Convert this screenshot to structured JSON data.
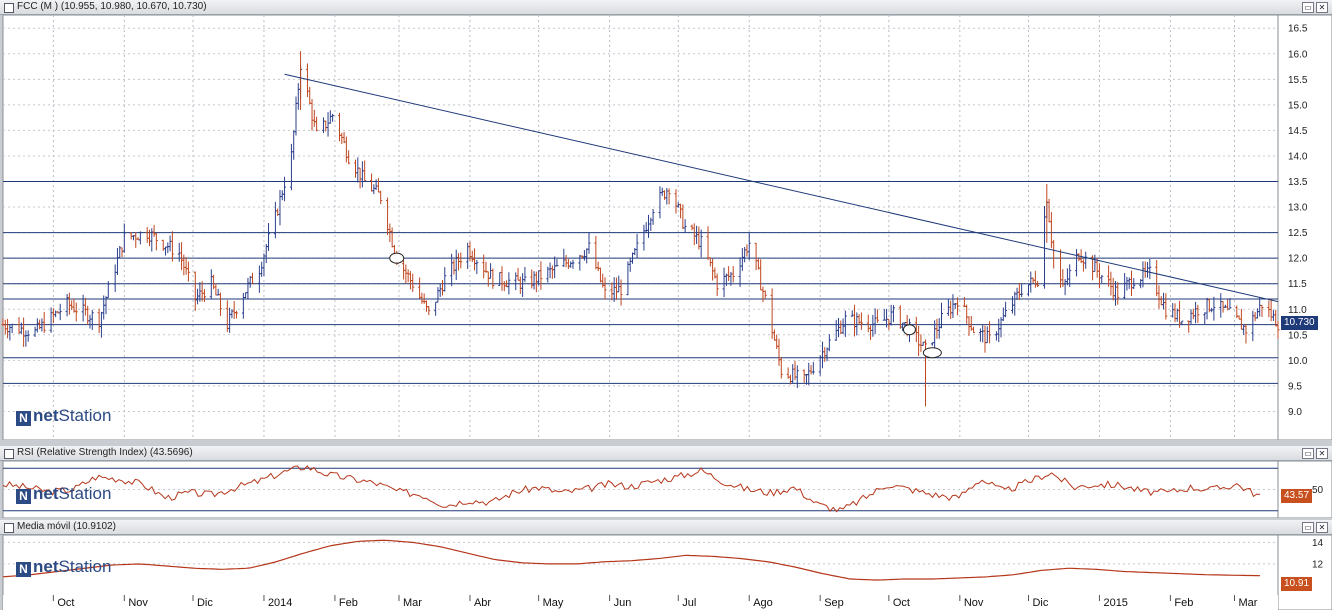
{
  "main_panel": {
    "title": "FCC (M ) (10.955, 10.980, 10.670, 10.730)",
    "last_value_badge": "10.730",
    "badge_color": "#1f3a78",
    "logo_net": "net",
    "logo_station": "Station"
  },
  "rsi_panel": {
    "title": "RSI (Relative Strength Index) (43.5696)",
    "last_value_badge": "43.57",
    "badge_color": "#c8501e",
    "tick_label": "50",
    "logo_net": "net",
    "logo_station": "Station"
  },
  "ma_panel": {
    "title": "Media móvil (10.9102)",
    "last_value_badge": "10.91",
    "badge_color": "#c8501e",
    "tick_labels": [
      "14",
      "12"
    ],
    "logo_net": "net",
    "logo_station": "Station"
  },
  "x_axis": {
    "months": [
      "Oct",
      "Nov",
      "Dic",
      "2014",
      "Feb",
      "Mar",
      "Abr",
      "May",
      "Jun",
      "Jul",
      "Ago",
      "Sep",
      "Oct",
      "Nov",
      "Dic",
      "2015",
      "Feb",
      "Mar"
    ]
  },
  "colors": {
    "up": "#2a3f8c",
    "down": "#c0461e",
    "line": "#1f3a78",
    "indicator": "#b5361a"
  },
  "chart_data": [
    {
      "type": "candlestick",
      "title": "FCC (M )",
      "last": {
        "open": 10.955,
        "high": 10.98,
        "low": 10.67,
        "close": 10.73
      },
      "ylim": [
        8.5,
        16.7
      ],
      "y_ticks": [
        "16.5",
        "16.0",
        "15.5",
        "15.0",
        "14.5",
        "14.0",
        "13.5",
        "13.0",
        "12.5",
        "12.0",
        "11.5",
        "11.0",
        "10.5",
        "10.0",
        "9.5",
        "9.0"
      ],
      "x_range": [
        "2013-09-09",
        "2015-03-20"
      ],
      "horizontal_levels": [
        13.5,
        12.5,
        12.0,
        11.5,
        11.2,
        10.7,
        10.05,
        9.55
      ],
      "trendline": {
        "from": {
          "date": "2014-01-10",
          "price": 15.6
        },
        "to": {
          "date": "2015-03-20",
          "price": 11.15
        }
      },
      "close_series": [
        {
          "date": "2013-09-09",
          "close": 10.7
        },
        {
          "date": "2013-09-23",
          "close": 10.55
        },
        {
          "date": "2013-10-07",
          "close": 11.1
        },
        {
          "date": "2013-10-21",
          "close": 10.8
        },
        {
          "date": "2013-11-01",
          "close": 12.4
        },
        {
          "date": "2013-11-11",
          "close": 12.5
        },
        {
          "date": "2013-11-25",
          "close": 12.1
        },
        {
          "date": "2013-12-02",
          "close": 11.2
        },
        {
          "date": "2013-12-09",
          "close": 11.5
        },
        {
          "date": "2013-12-16",
          "close": 10.7
        },
        {
          "date": "2013-12-23",
          "close": 11.3
        },
        {
          "date": "2013-12-30",
          "close": 11.8
        },
        {
          "date": "2014-01-06",
          "close": 12.8
        },
        {
          "date": "2014-01-13",
          "close": 14.0
        },
        {
          "date": "2014-01-17",
          "close": 15.8
        },
        {
          "date": "2014-01-24",
          "close": 14.4
        },
        {
          "date": "2014-01-31",
          "close": 14.8
        },
        {
          "date": "2014-02-07",
          "close": 14.0
        },
        {
          "date": "2014-02-14",
          "close": 13.5
        },
        {
          "date": "2014-02-21",
          "close": 13.2
        },
        {
          "date": "2014-02-28",
          "close": 12.0
        },
        {
          "date": "2014-03-07",
          "close": 11.5
        },
        {
          "date": "2014-03-14",
          "close": 10.9
        },
        {
          "date": "2014-03-21",
          "close": 11.6
        },
        {
          "date": "2014-03-31",
          "close": 12.2
        },
        {
          "date": "2014-04-11",
          "close": 11.6
        },
        {
          "date": "2014-04-25",
          "close": 11.5
        },
        {
          "date": "2014-05-09",
          "close": 11.8
        },
        {
          "date": "2014-05-23",
          "close": 12.2
        },
        {
          "date": "2014-05-30",
          "close": 11.3
        },
        {
          "date": "2014-06-06",
          "close": 11.4
        },
        {
          "date": "2014-06-13",
          "close": 12.2
        },
        {
          "date": "2014-06-20",
          "close": 13.0
        },
        {
          "date": "2014-06-27",
          "close": 13.4
        },
        {
          "date": "2014-07-04",
          "close": 12.6
        },
        {
          "date": "2014-07-11",
          "close": 12.3
        },
        {
          "date": "2014-07-18",
          "close": 11.5
        },
        {
          "date": "2014-07-25",
          "close": 11.7
        },
        {
          "date": "2014-08-01",
          "close": 12.3
        },
        {
          "date": "2014-08-08",
          "close": 11.2
        },
        {
          "date": "2014-08-15",
          "close": 9.8
        },
        {
          "date": "2014-08-25",
          "close": 9.6
        },
        {
          "date": "2014-09-01",
          "close": 10.1
        },
        {
          "date": "2014-09-12",
          "close": 10.8
        },
        {
          "date": "2014-09-26",
          "close": 10.7
        },
        {
          "date": "2014-10-03",
          "close": 10.9
        },
        {
          "date": "2014-10-10",
          "close": 10.6
        },
        {
          "date": "2014-10-17",
          "close": 10.2
        },
        {
          "date": "2014-10-24",
          "close": 10.8
        },
        {
          "date": "2014-10-31",
          "close": 11.2
        },
        {
          "date": "2014-11-07",
          "close": 10.6
        },
        {
          "date": "2014-11-14",
          "close": 10.4
        },
        {
          "date": "2014-11-21",
          "close": 10.9
        },
        {
          "date": "2014-11-28",
          "close": 11.4
        },
        {
          "date": "2014-12-05",
          "close": 11.6
        },
        {
          "date": "2014-12-09",
          "close": 13.2
        },
        {
          "date": "2014-12-12",
          "close": 12.0
        },
        {
          "date": "2014-12-16",
          "close": 11.4
        },
        {
          "date": "2014-12-23",
          "close": 12.1
        },
        {
          "date": "2014-12-30",
          "close": 11.8
        },
        {
          "date": "2015-01-09",
          "close": 11.3
        },
        {
          "date": "2015-01-16",
          "close": 11.6
        },
        {
          "date": "2015-01-23",
          "close": 11.7
        },
        {
          "date": "2015-01-30",
          "close": 11.0
        },
        {
          "date": "2015-02-06",
          "close": 10.8
        },
        {
          "date": "2015-02-13",
          "close": 11.0
        },
        {
          "date": "2015-02-20",
          "close": 11.1
        },
        {
          "date": "2015-02-27",
          "close": 10.9
        },
        {
          "date": "2015-03-06",
          "close": 10.6
        },
        {
          "date": "2015-03-13",
          "close": 11.1
        },
        {
          "date": "2015-03-20",
          "close": 10.73
        }
      ]
    },
    {
      "type": "line",
      "title": "RSI (Relative Strength Index)",
      "last": 43.5696,
      "ylim": [
        25,
        75
      ],
      "levels": [
        70,
        30
      ],
      "series": [
        {
          "values": [
            55,
            52,
            48,
            50,
            62,
            60,
            55,
            42,
            47,
            45,
            52,
            58,
            66,
            72,
            64,
            60,
            56,
            48,
            45,
            35,
            40,
            38,
            48,
            52,
            47,
            50,
            55,
            53,
            58,
            62,
            68,
            57,
            50,
            47,
            52,
            36,
            30,
            42,
            55,
            50,
            45,
            42,
            60,
            48,
            57,
            66,
            52,
            55,
            54,
            48,
            47,
            52,
            50,
            55,
            43.57
          ]
        }
      ]
    },
    {
      "type": "line",
      "title": "Media móvil",
      "last": 10.9102,
      "ylim": [
        9.3,
        14.5
      ],
      "series": [
        {
          "values": [
            10.8,
            11.0,
            11.3,
            11.6,
            11.9,
            12.0,
            11.8,
            11.6,
            11.5,
            11.6,
            12.2,
            13.0,
            13.7,
            14.1,
            14.2,
            14.0,
            13.6,
            13.0,
            12.4,
            12.1,
            12.0,
            12.0,
            12.2,
            12.3,
            12.5,
            12.8,
            12.7,
            12.5,
            12.2,
            11.7,
            11.1,
            10.6,
            10.5,
            10.6,
            10.6,
            10.7,
            10.8,
            11.0,
            11.4,
            11.6,
            11.5,
            11.3,
            11.2,
            11.1,
            11.0,
            10.95,
            10.91
          ]
        }
      ]
    }
  ]
}
